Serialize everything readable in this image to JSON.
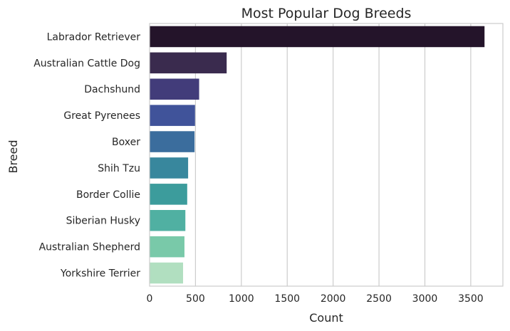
{
  "chart_data": {
    "type": "bar",
    "orientation": "horizontal",
    "title": "Most Popular Dog Breeds",
    "xlabel": "Count",
    "ylabel": "Breed",
    "categories": [
      "Labrador Retriever",
      "Australian Cattle Dog",
      "Dachshund",
      "Great Pyrenees",
      "Boxer",
      "Shih Tzu",
      "Border Collie",
      "Siberian Husky",
      "Australian Shepherd",
      "Yorkshire Terrier"
    ],
    "values": [
      3650,
      840,
      540,
      495,
      490,
      420,
      410,
      390,
      380,
      365
    ],
    "colors": [
      "#24142a",
      "#3a2b4e",
      "#423c7a",
      "#40539a",
      "#3b6d9d",
      "#38879d",
      "#3c9c9c",
      "#50b0a2",
      "#79c9a9",
      "#b1dfc0"
    ],
    "xlim": [
      0,
      3850
    ],
    "xticks": [
      0,
      500,
      1000,
      1500,
      2000,
      2500,
      3000,
      3500
    ],
    "grid": "x",
    "legend": "none"
  }
}
